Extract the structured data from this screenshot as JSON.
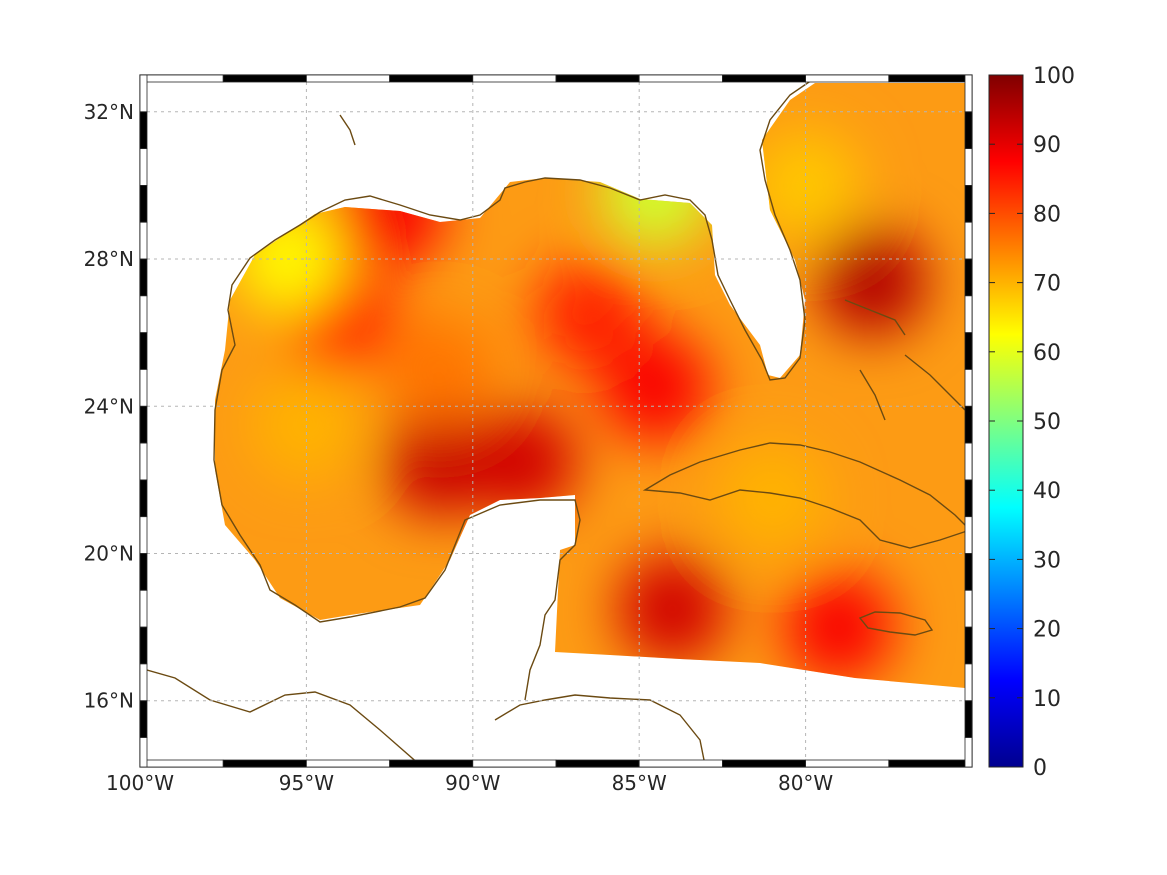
{
  "chart_data": {
    "type": "heatmap",
    "title": "",
    "xlabel": "",
    "ylabel": "",
    "projection": "geographic (lon/lat)",
    "xlim": [
      -100,
      -75
    ],
    "ylim": [
      14.2,
      33
    ],
    "x_ticks": [
      {
        "value": -100,
        "label": "100°W"
      },
      {
        "value": -95,
        "label": "95°W"
      },
      {
        "value": -90,
        "label": "90°W"
      },
      {
        "value": -85,
        "label": "85°W"
      },
      {
        "value": -80,
        "label": "80°W"
      }
    ],
    "y_ticks": [
      {
        "value": 16,
        "label": "16°N"
      },
      {
        "value": 20,
        "label": "20°N"
      },
      {
        "value": 24,
        "label": "24°N"
      },
      {
        "value": 28,
        "label": "28°N"
      },
      {
        "value": 32,
        "label": "32°N"
      }
    ],
    "grid": true,
    "colormap": "jet",
    "colorbar": {
      "min": 0,
      "max": 100,
      "ticks": [
        {
          "value": 0,
          "label": "0"
        },
        {
          "value": 10,
          "label": "10"
        },
        {
          "value": 20,
          "label": "20"
        },
        {
          "value": 30,
          "label": "30"
        },
        {
          "value": 40,
          "label": "40"
        },
        {
          "value": 50,
          "label": "50"
        },
        {
          "value": 60,
          "label": "60"
        },
        {
          "value": 70,
          "label": "70"
        },
        {
          "value": 80,
          "label": "80"
        },
        {
          "value": 90,
          "label": "90"
        },
        {
          "value": 100,
          "label": "100"
        }
      ],
      "placement": "right"
    },
    "field_hotspots": [
      {
        "lon": -94.0,
        "lat": 26.5,
        "value": 86
      },
      {
        "lon": -91.0,
        "lat": 22.5,
        "value": 93
      },
      {
        "lon": -88.5,
        "lat": 22.5,
        "value": 92
      },
      {
        "lon": -86.5,
        "lat": 26.5,
        "value": 84
      },
      {
        "lon": -84.5,
        "lat": 24.5,
        "value": 88
      },
      {
        "lon": -84.0,
        "lat": 18.5,
        "value": 92
      },
      {
        "lon": -78.0,
        "lat": 27.4,
        "value": 95
      },
      {
        "lon": -79.0,
        "lat": 18.0,
        "value": 88
      },
      {
        "lon": -92.5,
        "lat": 29.3,
        "value": 88
      },
      {
        "lon": -95.5,
        "lat": 28.0,
        "value": 63
      },
      {
        "lon": -95.0,
        "lat": 23.5,
        "value": 70
      },
      {
        "lon": -91.0,
        "lat": 25.0,
        "value": 76
      },
      {
        "lon": -80.0,
        "lat": 30.0,
        "value": 68
      },
      {
        "lon": -81.0,
        "lat": 21.5,
        "value": 70
      },
      {
        "lon": -84.5,
        "lat": 29.8,
        "value": 58
      }
    ]
  }
}
